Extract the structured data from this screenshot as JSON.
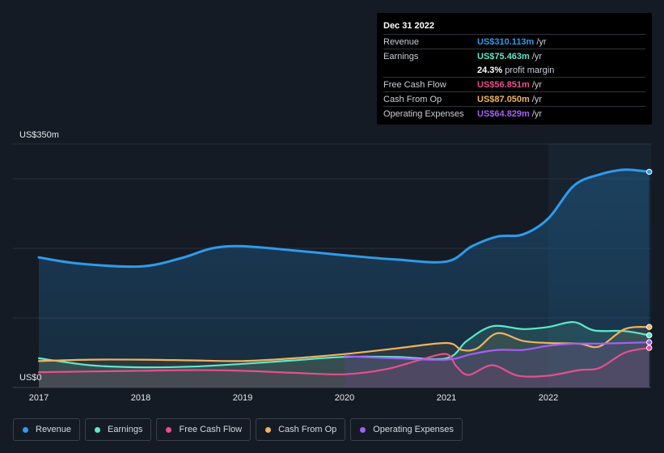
{
  "tooltip": {
    "date": "Dec 31 2022",
    "rows": [
      {
        "label": "Revenue",
        "value": "US$310.113m",
        "unit": "/yr",
        "color": "#2f9bea"
      },
      {
        "label": "Earnings",
        "value": "US$75.463m",
        "unit": "/yr",
        "color": "#5ee8c9"
      },
      {
        "label": "",
        "value": "24.3%",
        "unit": "profit margin",
        "color": "#ffffff"
      },
      {
        "label": "Free Cash Flow",
        "value": "US$56.851m",
        "unit": "/yr",
        "color": "#e64f8f"
      },
      {
        "label": "Cash From Op",
        "value": "US$87.050m",
        "unit": "/yr",
        "color": "#f0b35f"
      },
      {
        "label": "Operating Expenses",
        "value": "US$64.829m",
        "unit": "/yr",
        "color": "#a55ff5"
      }
    ]
  },
  "legend": [
    {
      "label": "Revenue",
      "color": "#2f9bea"
    },
    {
      "label": "Earnings",
      "color": "#5ee8c9"
    },
    {
      "label": "Free Cash Flow",
      "color": "#e64f8f"
    },
    {
      "label": "Cash From Op",
      "color": "#f0b35f"
    },
    {
      "label": "Operating Expenses",
      "color": "#a55ff5"
    }
  ],
  "chart_data": {
    "type": "area",
    "y_top_label": "US$350m",
    "y_bottom_label": "US$0",
    "ylim": [
      0,
      350
    ],
    "x_ticks": [
      {
        "label": "2017",
        "x": 2017.0
      },
      {
        "label": "2018",
        "x": 2018.0
      },
      {
        "label": "2019",
        "x": 2019.0
      },
      {
        "label": "2020",
        "x": 2020.0
      },
      {
        "label": "2021",
        "x": 2021.0
      },
      {
        "label": "2022",
        "x": 2022.0
      }
    ],
    "grid": true,
    "legend_position": "bottom",
    "series": [
      {
        "name": "Revenue",
        "color": "#2f9bea",
        "points": [
          [
            2017.0,
            187
          ],
          [
            2017.4,
            178
          ],
          [
            2018.0,
            174
          ],
          [
            2018.4,
            186
          ],
          [
            2018.7,
            200
          ],
          [
            2019.0,
            203
          ],
          [
            2019.5,
            197
          ],
          [
            2020.0,
            190
          ],
          [
            2020.5,
            184
          ],
          [
            2021.0,
            181
          ],
          [
            2021.25,
            203
          ],
          [
            2021.5,
            217
          ],
          [
            2021.75,
            220
          ],
          [
            2022.0,
            243
          ],
          [
            2022.25,
            290
          ],
          [
            2022.5,
            306
          ],
          [
            2022.75,
            313
          ],
          [
            2022.99,
            310
          ]
        ]
      },
      {
        "name": "Earnings",
        "color": "#5ee8c9",
        "points": [
          [
            2017.0,
            42
          ],
          [
            2017.5,
            32
          ],
          [
            2018.0,
            29
          ],
          [
            2018.5,
            30
          ],
          [
            2019.0,
            34
          ],
          [
            2019.5,
            39
          ],
          [
            2020.0,
            44
          ],
          [
            2020.5,
            44
          ],
          [
            2021.0,
            42
          ],
          [
            2021.2,
            67
          ],
          [
            2021.45,
            88
          ],
          [
            2021.75,
            84
          ],
          [
            2022.0,
            87
          ],
          [
            2022.25,
            94
          ],
          [
            2022.45,
            82
          ],
          [
            2022.75,
            81
          ],
          [
            2022.99,
            75
          ]
        ]
      },
      {
        "name": "Free Cash Flow",
        "color": "#e64f8f",
        "points": [
          [
            2017.0,
            22
          ],
          [
            2017.5,
            23
          ],
          [
            2018.0,
            24
          ],
          [
            2018.5,
            25
          ],
          [
            2019.0,
            24
          ],
          [
            2019.5,
            21
          ],
          [
            2020.0,
            19
          ],
          [
            2020.4,
            26
          ],
          [
            2020.75,
            40
          ],
          [
            2021.0,
            48
          ],
          [
            2021.1,
            30
          ],
          [
            2021.22,
            18
          ],
          [
            2021.45,
            32
          ],
          [
            2021.7,
            17
          ],
          [
            2022.0,
            17
          ],
          [
            2022.3,
            25
          ],
          [
            2022.5,
            28
          ],
          [
            2022.75,
            50
          ],
          [
            2022.99,
            57
          ]
        ]
      },
      {
        "name": "Cash From Op",
        "color": "#f0b35f",
        "points": [
          [
            2017.0,
            38
          ],
          [
            2017.5,
            40
          ],
          [
            2018.0,
            40
          ],
          [
            2018.5,
            39
          ],
          [
            2019.0,
            38
          ],
          [
            2019.5,
            42
          ],
          [
            2020.0,
            48
          ],
          [
            2020.5,
            56
          ],
          [
            2021.0,
            64
          ],
          [
            2021.15,
            54
          ],
          [
            2021.3,
            56
          ],
          [
            2021.5,
            78
          ],
          [
            2021.75,
            67
          ],
          [
            2022.0,
            64
          ],
          [
            2022.3,
            63
          ],
          [
            2022.5,
            59
          ],
          [
            2022.75,
            84
          ],
          [
            2022.99,
            87
          ]
        ]
      },
      {
        "name": "Operating Expenses",
        "color": "#a55ff5",
        "points": [
          [
            2020.0,
            45
          ],
          [
            2020.5,
            42
          ],
          [
            2021.0,
            40
          ],
          [
            2021.25,
            48
          ],
          [
            2021.5,
            54
          ],
          [
            2021.75,
            54
          ],
          [
            2022.0,
            60
          ],
          [
            2022.25,
            63
          ],
          [
            2022.5,
            63
          ],
          [
            2022.75,
            64
          ],
          [
            2022.99,
            65
          ]
        ]
      }
    ]
  }
}
